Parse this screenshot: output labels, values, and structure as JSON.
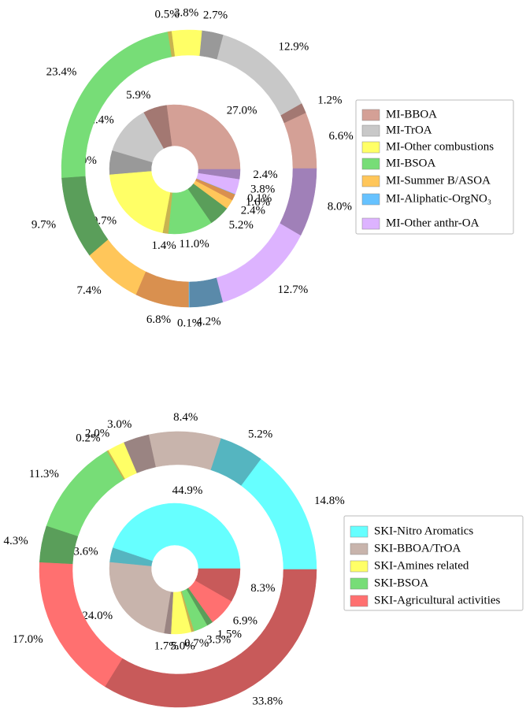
{
  "chart_data": [
    {
      "type": "pie",
      "rings": [
        {
          "values": [
            27.0,
            5.9,
            12.4,
            6.0,
            20.7,
            1.4,
            11.0,
            5.2,
            2.4,
            1.6,
            0.1,
            3.8,
            2.4
          ],
          "value_labels": [
            "27.0%",
            "5.9%",
            "12.4%",
            "6.0%",
            "20.7%",
            "1.4%",
            "11.0%",
            "5.2%",
            "2.4%",
            "1.6%",
            "0.1%",
            "3.8%",
            "2.4%"
          ],
          "colors": [
            "#d4a096",
            "#a37872",
            "#c8c8c8",
            "#999999",
            "#ffff66",
            "#c8b450",
            "#77dd77",
            "#5a9e5a",
            "#ffc65a",
            "#d9904f",
            "#66c2ff",
            "#ddb3ff",
            "#a080b8"
          ]
        },
        {
          "values": [
            6.6,
            1.2,
            12.9,
            2.7,
            3.8,
            0.5,
            23.4,
            9.7,
            7.4,
            6.8,
            0.1,
            4.2,
            12.7,
            8.0
          ],
          "value_labels": [
            "6.6%",
            "1.2%",
            "12.9%",
            "2.7%",
            "3.8%",
            "0.5%",
            "23.4%",
            "9.7%",
            "7.4%",
            "6.8%",
            "0.1%",
            "4.2%",
            "12.7%",
            "8.0%"
          ],
          "colors": [
            "#d4a096",
            "#a37872",
            "#c8c8c8",
            "#999999",
            "#ffff66",
            "#c8b450",
            "#77dd77",
            "#5a9e5a",
            "#ffc65a",
            "#d9904f",
            "#66c2ff",
            "#5a8aaa",
            "#ddb3ff",
            "#a080b8"
          ]
        }
      ],
      "legend": [
        {
          "label": "MI-BBOA",
          "color": "#d4a096"
        },
        {
          "label": "MI-TrOA",
          "color": "#c8c8c8"
        },
        {
          "label": "MI-Other combustions",
          "color": "#ffff66"
        },
        {
          "label": "MI-BSOA",
          "color": "#77dd77"
        },
        {
          "label": "MI-Summer B/ASOA",
          "color": "#ffc65a"
        },
        {
          "label": "MI-Aliphatic-OrgNO₃",
          "color": "#66c2ff"
        },
        {
          "label": "MI-Other anthr-OA",
          "color": "#ddb3ff"
        }
      ]
    },
    {
      "type": "pie",
      "rings": [
        {
          "values": [
            44.9,
            3.6,
            24.0,
            1.7,
            5.0,
            0.7,
            3.5,
            1.5,
            6.9,
            8.3
          ],
          "value_labels": [
            "44.9%",
            "3.6%",
            "24.0%",
            "1.7%",
            "5.0%",
            "0.7%",
            "3.5%",
            "1.5%",
            "6.9%",
            "8.3%"
          ],
          "colors": [
            "#66ffff",
            "#55b5c0",
            "#c8b4ac",
            "#9a8482",
            "#ffff66",
            "#c8b450",
            "#77dd77",
            "#5a9e5a",
            "#ff7070",
            "#c85a5a"
          ]
        },
        {
          "values": [
            14.8,
            5.2,
            8.4,
            3.0,
            2.0,
            0.2,
            11.3,
            4.3,
            17.0,
            33.8
          ],
          "value_labels": [
            "14.8%",
            "5.2%",
            "8.4%",
            "3.0%",
            "2.0%",
            "0.2%",
            "11.3%",
            "4.3%",
            "17.0%",
            "33.8%"
          ],
          "colors": [
            "#66ffff",
            "#55b5c0",
            "#c8b4ac",
            "#9a8482",
            "#ffff66",
            "#c8b450",
            "#77dd77",
            "#5a9e5a",
            "#ff7070",
            "#c85a5a"
          ]
        }
      ],
      "legend": [
        {
          "label": "SKI-Nitro Aromatics",
          "color": "#66ffff"
        },
        {
          "label": "SKI-BBOA/TrOA",
          "color": "#c8b4ac"
        },
        {
          "label": "SKI-Amines related",
          "color": "#ffff66"
        },
        {
          "label": "SKI-BSOA",
          "color": "#77dd77"
        },
        {
          "label": "SKI-Agricultural activities",
          "color": "#ff7070"
        }
      ]
    }
  ]
}
